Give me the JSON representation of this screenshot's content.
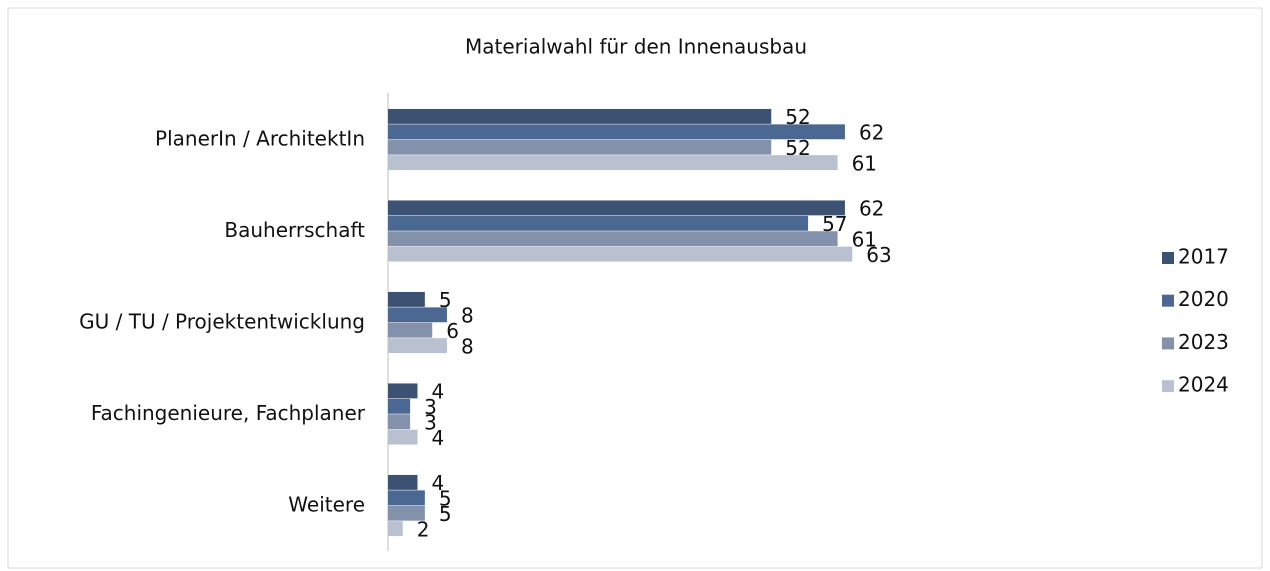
{
  "chart_data": {
    "type": "hbar",
    "title": "Materialwahl für den Innenausbau",
    "categories": [
      "PlanerIn / ArchitektIn",
      "Bauherrschaft",
      "GU / TU / Projektentwicklung",
      "Fachingenieure, Fachplaner",
      "Weitere"
    ],
    "series": [
      {
        "name": "2017",
        "color": "#3c5272",
        "values": [
          52,
          62,
          5,
          4,
          4
        ]
      },
      {
        "name": "2020",
        "color": "#4b6892",
        "values": [
          62,
          57,
          8,
          3,
          5
        ]
      },
      {
        "name": "2023",
        "color": "#8391ab",
        "values": [
          52,
          61,
          6,
          3,
          5
        ]
      },
      {
        "name": "2024",
        "color": "#b9c0cf",
        "values": [
          61,
          63,
          8,
          4,
          2
        ]
      }
    ],
    "xlim": [
      0,
      100
    ],
    "legend": "right"
  }
}
